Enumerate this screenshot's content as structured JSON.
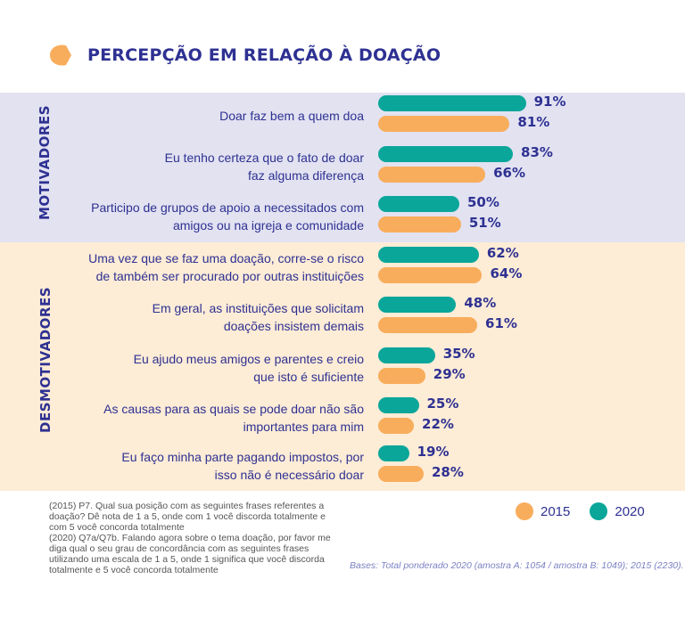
{
  "title": "PERCEPÇÃO EM RELAÇÃO À DOAÇÃO",
  "colors": {
    "s2020": "#0aa69a",
    "s2015": "#f8ad5c",
    "text": "#2e3192",
    "motivadores_bg": "#e2e2f1",
    "desmotivadores_bg": "#fdecd6"
  },
  "groups": {
    "motivadores": "MOTIVADORES",
    "desmotivadores": "DESMOTIVADORES"
  },
  "chart_data": {
    "type": "bar",
    "orientation": "horizontal",
    "categories": [
      "Doar faz bem a quem doa",
      "Eu tenho certeza que o fato de doar faz alguma diferença",
      "Participo de grupos de apoio a necessitados com amigos ou na igreja e comunidade",
      "Uma vez que se faz uma doação, corre-se o risco de também ser procurado por outras instituições",
      "Em geral, as instituições que solicitam doações insistem demais",
      "Eu ajudo meus amigos e parentes e creio que isto é suficiente",
      "As causas para as quais se pode doar não são importantes para mim",
      "Eu faço minha parte pagando impostos, por isso não é necessário doar"
    ],
    "label_lines": [
      [
        "Doar faz bem a quem doa"
      ],
      [
        "Eu tenho certeza que o fato de doar",
        "faz alguma diferença"
      ],
      [
        "Participo de grupos de apoio a necessitados com",
        "amigos ou na igreja e comunidade"
      ],
      [
        "Uma vez que se faz uma doação, corre-se o risco",
        "de também ser procurado por outras instituições"
      ],
      [
        "Em geral, as instituições que solicitam",
        "doações insistem demais"
      ],
      [
        "Eu ajudo meus amigos e parentes e creio",
        "que isto é suficiente"
      ],
      [
        "As causas para as quais se pode doar não são",
        "importantes para mim"
      ],
      [
        "Eu faço minha parte pagando impostos, por",
        "isso não é necessário doar"
      ]
    ],
    "series": [
      {
        "name": "2020",
        "values": [
          91,
          83,
          50,
          62,
          48,
          35,
          25,
          19
        ]
      },
      {
        "name": "2015",
        "values": [
          81,
          66,
          51,
          64,
          61,
          29,
          22,
          28
        ]
      }
    ],
    "value_suffix": "%",
    "xlim": [
      0,
      100
    ],
    "legend_position": "bottom-right"
  },
  "notes": [
    "(2015) P7. Qual sua posição com as seguintes frases referentes a doação? Dê nota de 1 a 5, onde com 1 você discorda totalmente e com 5 você concorda totalmente",
    "(2020) Q7a/Q7b. Falando agora sobre o tema doação, por favor me diga qual o seu grau de concordância com as seguintes frases utilizando uma escala de 1 a 5, onde 1 significa que você discorda totalmente e 5 você concorda totalmente"
  ],
  "bases": "Bases: Total ponderado 2020 (amostra A: 1054 / amostra B: 1049); 2015 (2230)."
}
